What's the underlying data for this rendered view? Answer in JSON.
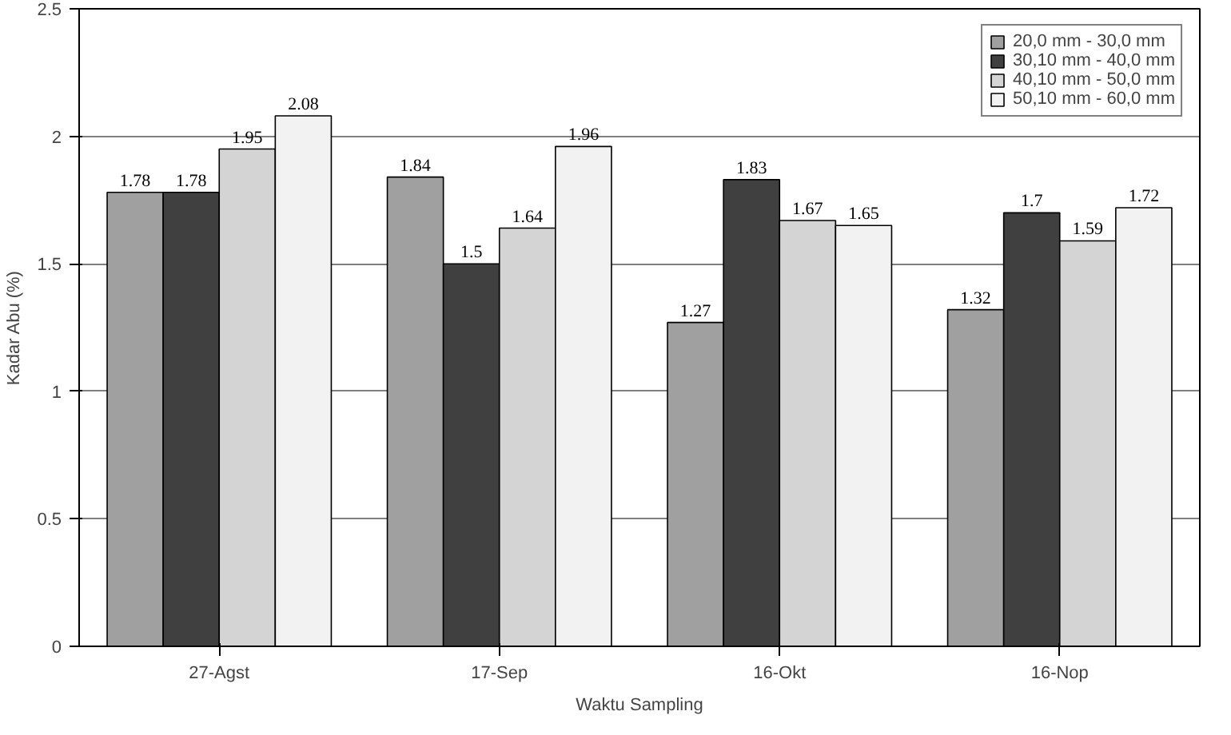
{
  "chart_data": {
    "type": "bar",
    "xlabel": "Waktu Sampling",
    "ylabel": "Kadar Abu (%)",
    "categories": [
      "27-Agst",
      "17-Sep",
      "16-Okt",
      "16-Nop"
    ],
    "series": [
      {
        "name": "20,0 mm - 30,0 mm",
        "color": "#a0a0a0",
        "values": [
          1.78,
          1.84,
          1.27,
          1.32
        ]
      },
      {
        "name": "30,10 mm - 40,0 mm",
        "color": "#404040",
        "values": [
          1.78,
          1.5,
          1.83,
          1.7
        ]
      },
      {
        "name": "40,10 mm - 50,0 mm",
        "color": "#d4d4d4",
        "values": [
          1.95,
          1.64,
          1.67,
          1.59
        ]
      },
      {
        "name": "50,10 mm - 60,0 mm",
        "color": "#f2f2f2",
        "values": [
          2.08,
          1.96,
          1.65,
          1.72
        ]
      }
    ],
    "ylim": [
      0,
      2.5
    ],
    "yticks": [
      0,
      {
        "value": 0.5,
        "label": "0.5"
      },
      1,
      {
        "value": 1.5,
        "label": "1.5"
      },
      2,
      {
        "value": 2.5,
        "label": "2.5"
      }
    ],
    "grid": "y",
    "legend": "top right",
    "data_labels": true
  }
}
